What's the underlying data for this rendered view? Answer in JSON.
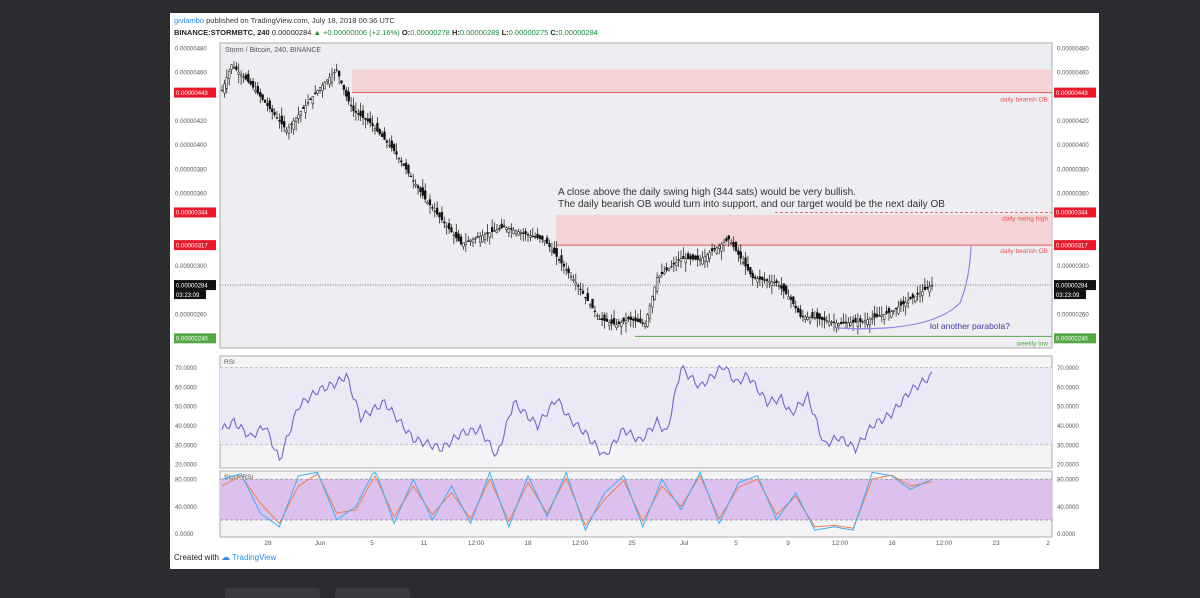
{
  "header": {
    "user": "givlambo",
    "published": " published on TradingView.com, July 18, 2018 00:36 UTC",
    "symbol": "BINANCE:STORMBTC, 240",
    "price": "0.00000284",
    "change": "▲ +0.00000006 (+2.16%)",
    "o_label": "O:",
    "o_value": "0.00000278",
    "h_label": "H:",
    "h_value": "0.00000289",
    "l_label": "L:",
    "l_value": "0.00000275",
    "c_label": "C:",
    "c_value": "0.00000284"
  },
  "footer": {
    "created_with": "Created with",
    "brand": "TradingView"
  },
  "colors": {
    "candle": "#111111",
    "ob_zone": "#f4c9c9",
    "ob_line": "#e55353",
    "red_label": "#e8182a",
    "green_label": "#54a846",
    "rsi_line": "#7466c8",
    "rsi_band": "#ece9f7",
    "stoch_band": "#dcc0ee",
    "stoch_k": "#3ab0f2",
    "stoch_d": "#f07f4a",
    "parabola": "#8f84e8",
    "note_text": "#3f3aa3"
  },
  "chart_data": [
    {
      "type": "candlestick",
      "title": "Storm / Bitcoin, 240, BINANCE",
      "ylim": [
        2.32e-06,
        4.84e-06
      ],
      "y_ticks": [
        "0.00000480",
        "0.00000460",
        "0.00000420",
        "0.00000400",
        "0.00000380",
        "0.00000360",
        "0.00000300",
        "0.00000260"
      ],
      "x_ticks": [
        "28",
        "Jun",
        "5",
        "11",
        "12:00",
        "18",
        "12:00",
        "25",
        "Jul",
        "5",
        "9",
        "12:00",
        "16",
        "12:00",
        "23",
        "2"
      ],
      "price_anchors": {
        "x": [
          0,
          4,
          12,
          27,
          40,
          48,
          52,
          55,
          62,
          72,
          85,
          100,
          118,
          135,
          148,
          158,
          165,
          170,
          177,
          182,
          192,
          200,
          212,
          222,
          232,
          238,
          242,
          248,
          258,
          268,
          280,
          297
        ],
        "y": [
          4.45e-06,
          4.66e-06,
          4.5e-06,
          4.12e-06,
          4.45e-06,
          4.62e-06,
          4.4e-06,
          4.28e-06,
          4.18e-06,
          3.95e-06,
          3.55e-06,
          3.18e-06,
          3.32e-06,
          3.21e-06,
          2.86e-06,
          2.56e-06,
          2.51e-06,
          2.56e-06,
          2.52e-06,
          2.9e-06,
          3.06e-06,
          3.05e-06,
          3.22e-06,
          2.9e-06,
          2.86e-06,
          2.72e-06,
          2.58e-06,
          2.57e-06,
          2.52e-06,
          2.54e-06,
          2.62e-06,
          2.84e-06
        ]
      },
      "last_price": "0.00000284",
      "countdown": "03:23:09",
      "levels": [
        {
          "label": "daily bearish OB",
          "price": "0.00000443",
          "zone_top": 4.62e-06,
          "color": "red"
        },
        {
          "label": "daily swing high",
          "price": "0.00000344",
          "color": "red",
          "style": "dashed"
        },
        {
          "label": "daily bearish OB",
          "price": "0.00000317",
          "zone_top": 3.42e-06,
          "color": "red"
        },
        {
          "label": "weekly low",
          "price": "0.00000240",
          "color": "green"
        }
      ],
      "annotations": [
        "A close above the daily swing high (344 sats) would be very bullish.",
        "The daily bearish OB would turn into support, and our target would be the next daily OB",
        "lol another parabola?"
      ]
    },
    {
      "type": "line",
      "title": "RSI",
      "ylim": [
        18,
        76
      ],
      "y_ticks": [
        "70.0000",
        "60.0000",
        "50.0000",
        "40.0000",
        "30.0000",
        "20.0000"
      ],
      "band": [
        30,
        70
      ],
      "series": [
        {
          "x": [
            0,
            5,
            12,
            18,
            24,
            32,
            40,
            48,
            52,
            58,
            68,
            80,
            92,
            100,
            108,
            115,
            122,
            132,
            140,
            145,
            152,
            160,
            168,
            175,
            182,
            186,
            192,
            200,
            210,
            215,
            220,
            228,
            234,
            238,
            245,
            252,
            258,
            265,
            272,
            280,
            288,
            297
          ],
          "y": [
            38,
            42,
            34,
            40,
            22,
            50,
            58,
            62,
            66,
            44,
            52,
            33,
            28,
            36,
            38,
            24,
            52,
            40,
            54,
            44,
            36,
            24,
            38,
            32,
            42,
            36,
            70,
            60,
            71,
            62,
            66,
            52,
            54,
            46,
            55,
            30,
            34,
            28,
            40,
            46,
            58,
            66
          ]
        }
      ]
    },
    {
      "type": "line",
      "title": "Stoch RSI",
      "ylim": [
        -5,
        92
      ],
      "y_ticks": [
        "80.0000",
        "40.0000",
        "0.0000"
      ],
      "band": [
        20,
        80
      ],
      "series": [
        {
          "x": [
            0,
            8,
            16,
            24,
            32,
            40,
            48,
            56,
            64,
            72,
            80,
            88,
            96,
            104,
            112,
            120,
            128,
            136,
            144,
            152,
            160,
            168,
            176,
            184,
            192,
            200,
            208,
            216,
            224,
            232,
            240,
            248,
            256,
            264,
            272,
            280,
            288,
            297
          ],
          "y": [
            80,
            88,
            30,
            10,
            85,
            90,
            20,
            40,
            95,
            15,
            80,
            20,
            70,
            15,
            90,
            10,
            85,
            25,
            90,
            5,
            60,
            85,
            10,
            80,
            35,
            90,
            15,
            75,
            85,
            20,
            60,
            5,
            10,
            5,
            90,
            85,
            65,
            80
          ]
        },
        {
          "x": [
            0,
            8,
            16,
            24,
            32,
            40,
            48,
            56,
            64,
            72,
            80,
            88,
            96,
            104,
            112,
            120,
            128,
            136,
            144,
            152,
            160,
            168,
            176,
            184,
            192,
            200,
            208,
            216,
            224,
            232,
            240,
            248,
            256,
            264,
            272,
            280,
            288,
            297
          ],
          "y": [
            70,
            85,
            45,
            15,
            70,
            88,
            30,
            35,
            85,
            25,
            70,
            28,
            60,
            22,
            80,
            18,
            75,
            30,
            82,
            12,
            50,
            78,
            18,
            70,
            40,
            85,
            22,
            68,
            80,
            28,
            55,
            10,
            12,
            8,
            80,
            86,
            70,
            76
          ]
        }
      ]
    }
  ]
}
